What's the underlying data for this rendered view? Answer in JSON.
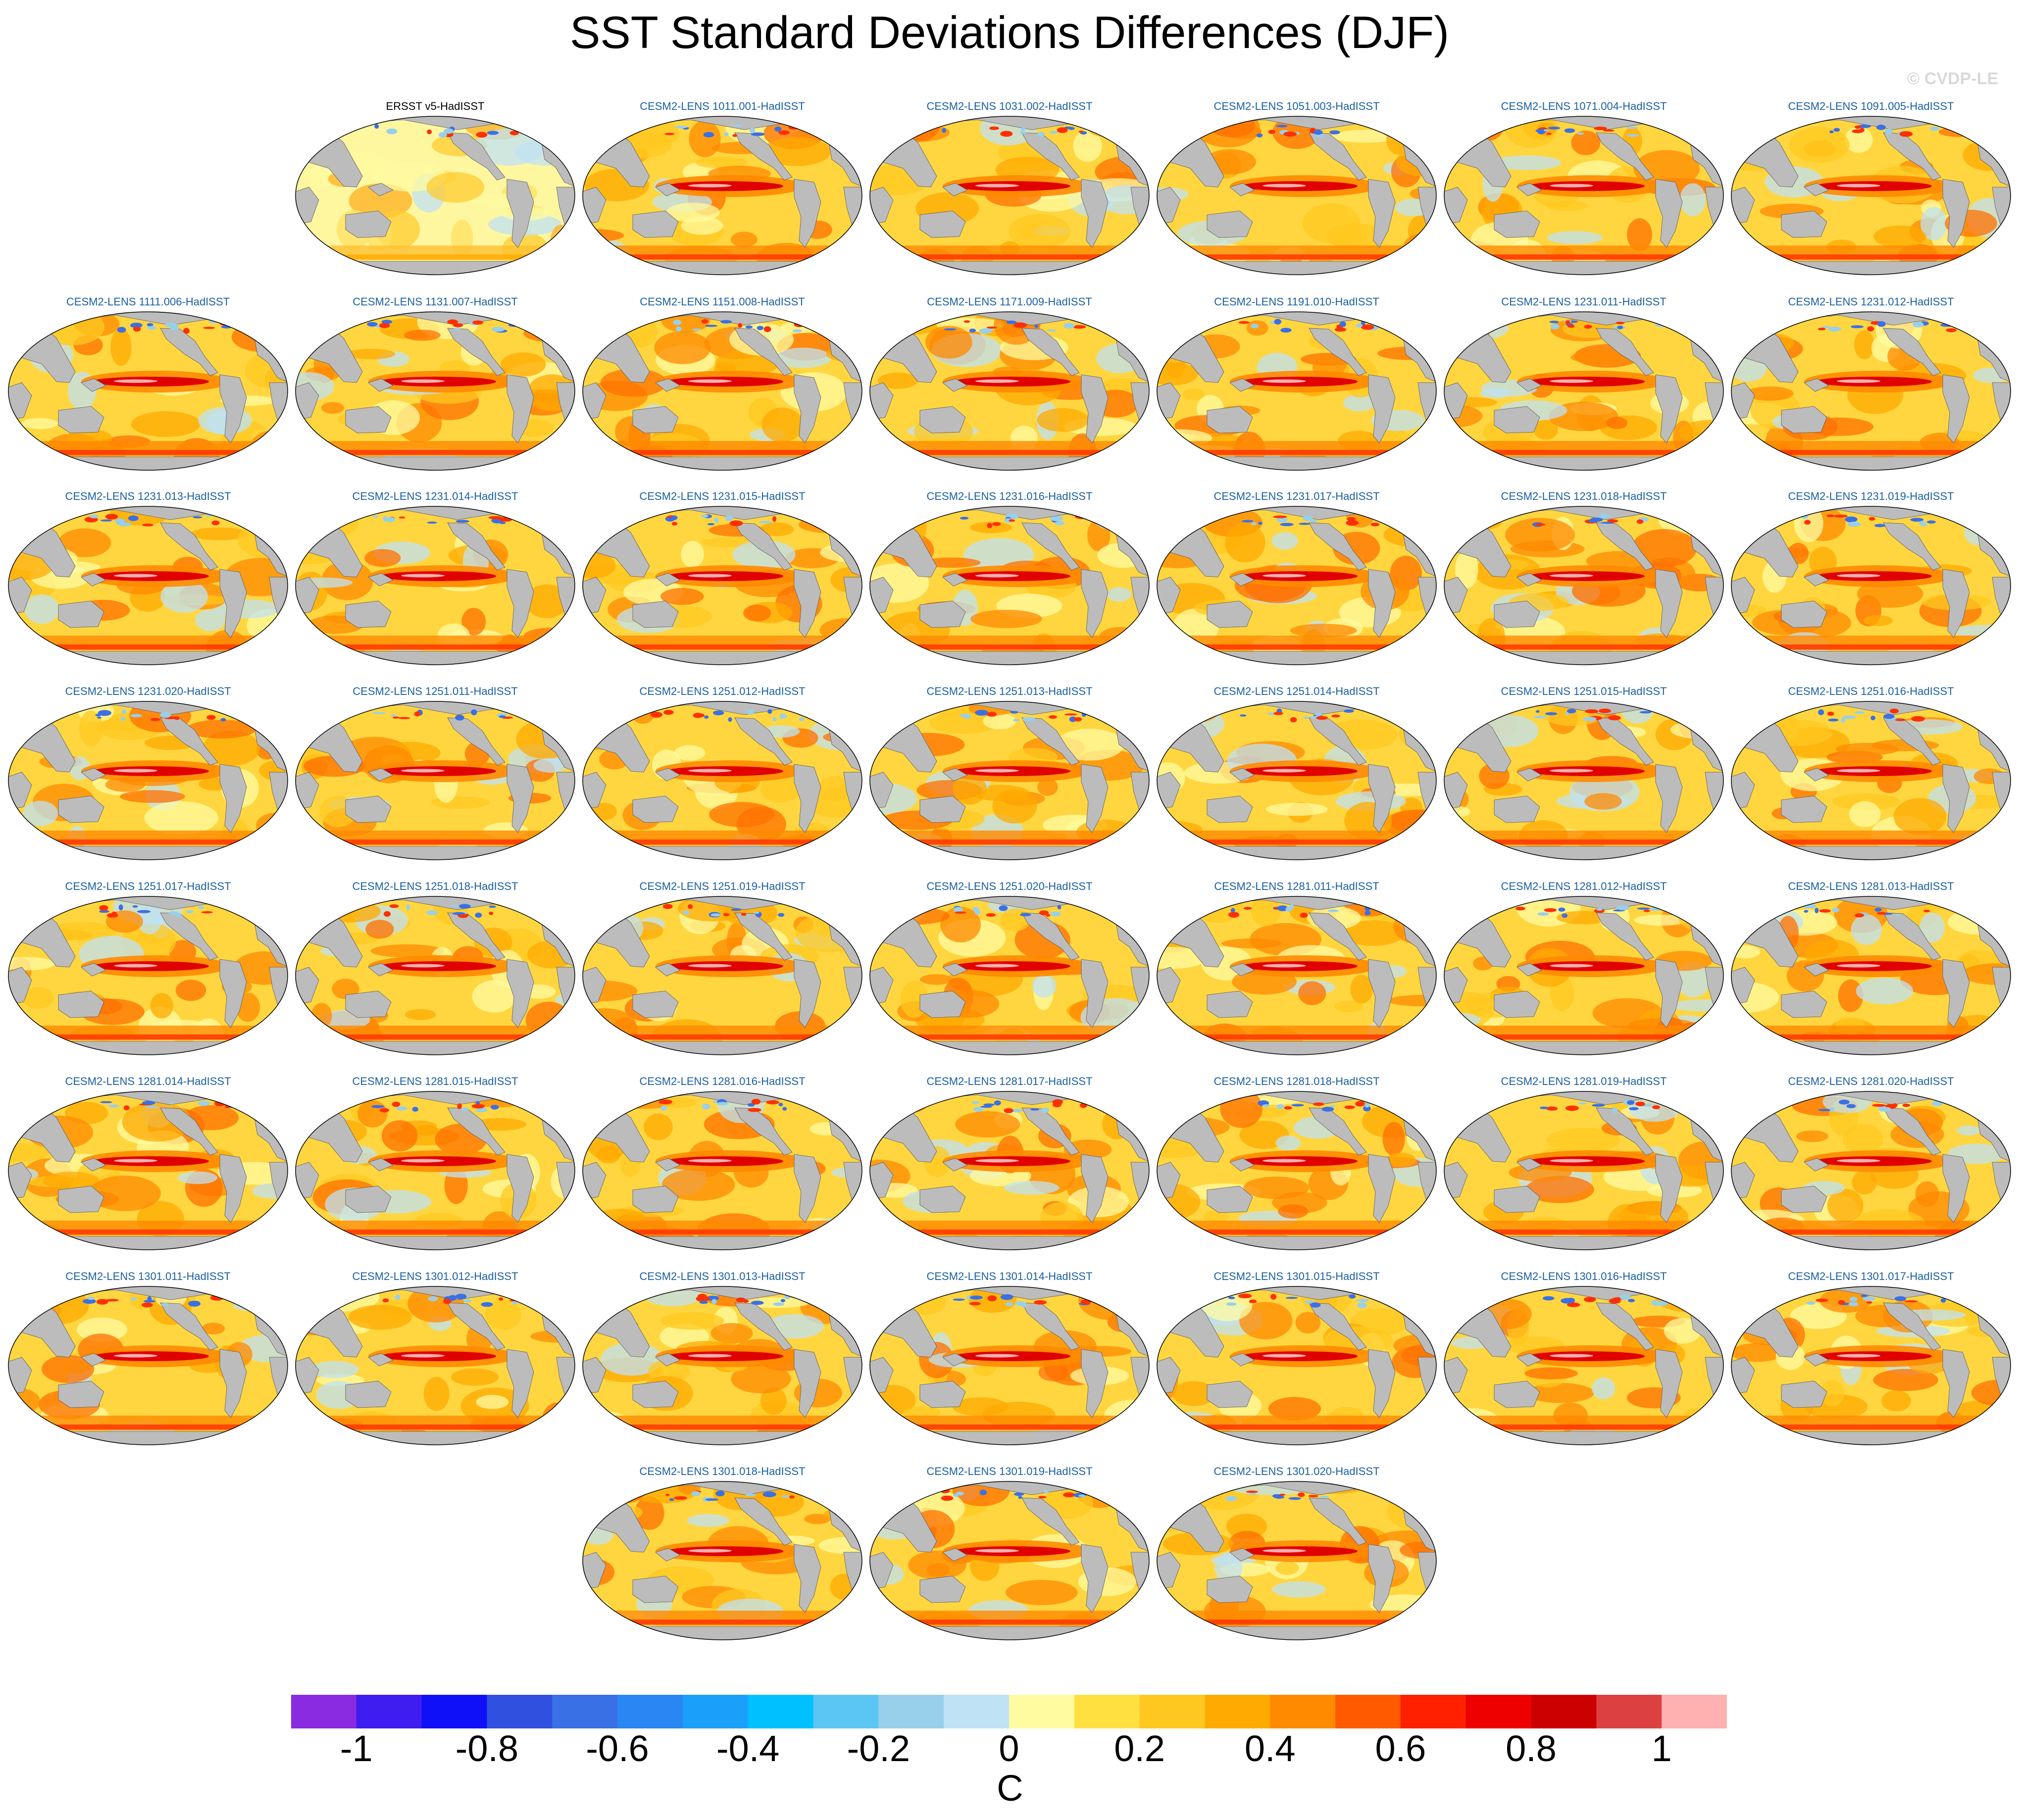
{
  "title": "SST Standard Deviations Differences (DJF)",
  "copyright": "© CVDP-LE",
  "panels": [
    "ERSST v5-HadISST",
    "CESM2-LENS 1011.001-HadISST",
    "CESM2-LENS 1031.002-HadISST",
    "CESM2-LENS 1051.003-HadISST",
    "CESM2-LENS 1071.004-HadISST",
    "CESM2-LENS 1091.005-HadISST",
    "CESM2-LENS 1111.006-HadISST",
    "CESM2-LENS 1131.007-HadISST",
    "CESM2-LENS 1151.008-HadISST",
    "CESM2-LENS 1171.009-HadISST",
    "CESM2-LENS 1191.010-HadISST",
    "CESM2-LENS 1231.011-HadISST",
    "CESM2-LENS 1231.012-HadISST",
    "CESM2-LENS 1231.013-HadISST",
    "CESM2-LENS 1231.014-HadISST",
    "CESM2-LENS 1231.015-HadISST",
    "CESM2-LENS 1231.016-HadISST",
    "CESM2-LENS 1231.017-HadISST",
    "CESM2-LENS 1231.018-HadISST",
    "CESM2-LENS 1231.019-HadISST",
    "CESM2-LENS 1231.020-HadISST",
    "CESM2-LENS 1251.011-HadISST",
    "CESM2-LENS 1251.012-HadISST",
    "CESM2-LENS 1251.013-HadISST",
    "CESM2-LENS 1251.014-HadISST",
    "CESM2-LENS 1251.015-HadISST",
    "CESM2-LENS 1251.016-HadISST",
    "CESM2-LENS 1251.017-HadISST",
    "CESM2-LENS 1251.018-HadISST",
    "CESM2-LENS 1251.019-HadISST",
    "CESM2-LENS 1251.020-HadISST",
    "CESM2-LENS 1281.011-HadISST",
    "CESM2-LENS 1281.012-HadISST",
    "CESM2-LENS 1281.013-HadISST",
    "CESM2-LENS 1281.014-HadISST",
    "CESM2-LENS 1281.015-HadISST",
    "CESM2-LENS 1281.016-HadISST",
    "CESM2-LENS 1281.017-HadISST",
    "CESM2-LENS 1281.018-HadISST",
    "CESM2-LENS 1281.019-HadISST",
    "CESM2-LENS 1281.020-HadISST",
    "CESM2-LENS 1301.011-HadISST",
    "CESM2-LENS 1301.012-HadISST",
    "CESM2-LENS 1301.013-HadISST",
    "CESM2-LENS 1301.014-HadISST",
    "CESM2-LENS 1301.015-HadISST",
    "CESM2-LENS 1301.016-HadISST",
    "CESM2-LENS 1301.017-HadISST",
    "CESM2-LENS 1301.018-HadISST",
    "CESM2-LENS 1301.019-HadISST",
    "CESM2-LENS 1301.020-HadISST"
  ],
  "colorbar": {
    "unit": "C",
    "colors": [
      "#8a2be2",
      "#3f1df0",
      "#1010f8",
      "#3050e0",
      "#3a70e6",
      "#2a86f2",
      "#1aa0f8",
      "#00c0ff",
      "#5cc6f2",
      "#98cfeb",
      "#bfe2f4",
      "#fffba0",
      "#ffe040",
      "#ffc820",
      "#ffaa00",
      "#ff8a00",
      "#ff5a00",
      "#ff2000",
      "#ee0000",
      "#cc0000",
      "#dd4040",
      "#ffb0b0"
    ],
    "tick_labels": [
      "-1",
      "-0.8",
      "-0.6",
      "-0.4",
      "-0.2",
      "0",
      "0.2",
      "0.4",
      "0.6",
      "0.8",
      "1"
    ]
  },
  "colors": {
    "land": "#bcbcbc",
    "ocean_base": "#ffe23c",
    "equatorial_max": "#d80000",
    "panel_title": "#1a5fa0"
  }
}
